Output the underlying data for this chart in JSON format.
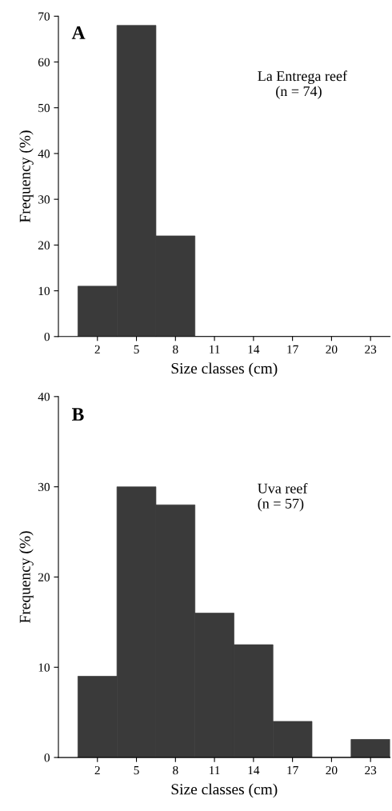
{
  "chart_data": [
    {
      "type": "histogram",
      "bins": [
        0.5,
        3.5,
        6.5,
        9.5,
        12.5,
        15.5,
        18.5,
        21.5,
        24.5
      ],
      "values": [
        11,
        68,
        22,
        0,
        0,
        0,
        0,
        0
      ],
      "color": "#3a3a3a",
      "xlabel": "Size classes (cm)",
      "ylabel": "Frequency (%)",
      "xlim": [
        -1,
        24.5
      ],
      "xticks": [
        2,
        5,
        8,
        11,
        14,
        17,
        20,
        23
      ],
      "ylim": [
        0,
        70
      ],
      "yticks": [
        0,
        10,
        20,
        30,
        40,
        50,
        60,
        70
      ],
      "annotations": [
        "A",
        "La Entrega reef\n     (n = 74)"
      ]
    },
    {
      "type": "histogram",
      "bins": [
        0.5,
        3.5,
        6.5,
        9.5,
        12.5,
        15.5,
        18.5,
        21.5,
        24.5
      ],
      "values": [
        9,
        30,
        28,
        16,
        12.5,
        4,
        0,
        2
      ],
      "color": "#3a3a3a",
      "xlabel": "Size classes (cm)",
      "ylabel": "Frequency (%)",
      "xlim": [
        -1,
        24.5
      ],
      "xticks": [
        2,
        5,
        8,
        11,
        14,
        17,
        20,
        23
      ],
      "ylim": [
        0,
        40
      ],
      "yticks": [
        0,
        10,
        20,
        30,
        40
      ],
      "annotations": [
        "B",
        "Uva reef\n(n = 57)"
      ]
    }
  ]
}
